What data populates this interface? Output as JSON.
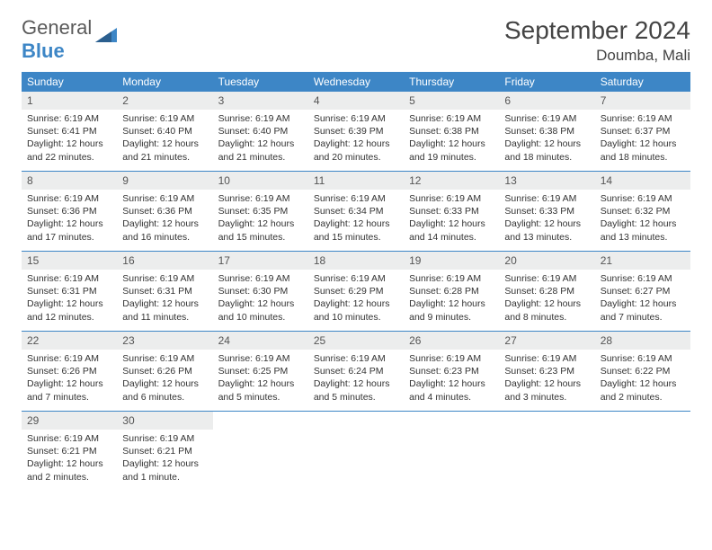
{
  "logo": {
    "text1": "General",
    "text2": "Blue"
  },
  "month": "September 2024",
  "location": "Doumba, Mali",
  "colors": {
    "header_bg": "#3d86c6",
    "daynum_bg": "#eceded",
    "week_border": "#3d86c6",
    "text": "#333333",
    "logo_gray": "#5a5a5a",
    "logo_blue": "#3d86c6"
  },
  "weekdays": [
    "Sunday",
    "Monday",
    "Tuesday",
    "Wednesday",
    "Thursday",
    "Friday",
    "Saturday"
  ],
  "weeks": [
    [
      {
        "n": "1",
        "sr": "Sunrise: 6:19 AM",
        "ss": "Sunset: 6:41 PM",
        "d1": "Daylight: 12 hours",
        "d2": "and 22 minutes."
      },
      {
        "n": "2",
        "sr": "Sunrise: 6:19 AM",
        "ss": "Sunset: 6:40 PM",
        "d1": "Daylight: 12 hours",
        "d2": "and 21 minutes."
      },
      {
        "n": "3",
        "sr": "Sunrise: 6:19 AM",
        "ss": "Sunset: 6:40 PM",
        "d1": "Daylight: 12 hours",
        "d2": "and 21 minutes."
      },
      {
        "n": "4",
        "sr": "Sunrise: 6:19 AM",
        "ss": "Sunset: 6:39 PM",
        "d1": "Daylight: 12 hours",
        "d2": "and 20 minutes."
      },
      {
        "n": "5",
        "sr": "Sunrise: 6:19 AM",
        "ss": "Sunset: 6:38 PM",
        "d1": "Daylight: 12 hours",
        "d2": "and 19 minutes."
      },
      {
        "n": "6",
        "sr": "Sunrise: 6:19 AM",
        "ss": "Sunset: 6:38 PM",
        "d1": "Daylight: 12 hours",
        "d2": "and 18 minutes."
      },
      {
        "n": "7",
        "sr": "Sunrise: 6:19 AM",
        "ss": "Sunset: 6:37 PM",
        "d1": "Daylight: 12 hours",
        "d2": "and 18 minutes."
      }
    ],
    [
      {
        "n": "8",
        "sr": "Sunrise: 6:19 AM",
        "ss": "Sunset: 6:36 PM",
        "d1": "Daylight: 12 hours",
        "d2": "and 17 minutes."
      },
      {
        "n": "9",
        "sr": "Sunrise: 6:19 AM",
        "ss": "Sunset: 6:36 PM",
        "d1": "Daylight: 12 hours",
        "d2": "and 16 minutes."
      },
      {
        "n": "10",
        "sr": "Sunrise: 6:19 AM",
        "ss": "Sunset: 6:35 PM",
        "d1": "Daylight: 12 hours",
        "d2": "and 15 minutes."
      },
      {
        "n": "11",
        "sr": "Sunrise: 6:19 AM",
        "ss": "Sunset: 6:34 PM",
        "d1": "Daylight: 12 hours",
        "d2": "and 15 minutes."
      },
      {
        "n": "12",
        "sr": "Sunrise: 6:19 AM",
        "ss": "Sunset: 6:33 PM",
        "d1": "Daylight: 12 hours",
        "d2": "and 14 minutes."
      },
      {
        "n": "13",
        "sr": "Sunrise: 6:19 AM",
        "ss": "Sunset: 6:33 PM",
        "d1": "Daylight: 12 hours",
        "d2": "and 13 minutes."
      },
      {
        "n": "14",
        "sr": "Sunrise: 6:19 AM",
        "ss": "Sunset: 6:32 PM",
        "d1": "Daylight: 12 hours",
        "d2": "and 13 minutes."
      }
    ],
    [
      {
        "n": "15",
        "sr": "Sunrise: 6:19 AM",
        "ss": "Sunset: 6:31 PM",
        "d1": "Daylight: 12 hours",
        "d2": "and 12 minutes."
      },
      {
        "n": "16",
        "sr": "Sunrise: 6:19 AM",
        "ss": "Sunset: 6:31 PM",
        "d1": "Daylight: 12 hours",
        "d2": "and 11 minutes."
      },
      {
        "n": "17",
        "sr": "Sunrise: 6:19 AM",
        "ss": "Sunset: 6:30 PM",
        "d1": "Daylight: 12 hours",
        "d2": "and 10 minutes."
      },
      {
        "n": "18",
        "sr": "Sunrise: 6:19 AM",
        "ss": "Sunset: 6:29 PM",
        "d1": "Daylight: 12 hours",
        "d2": "and 10 minutes."
      },
      {
        "n": "19",
        "sr": "Sunrise: 6:19 AM",
        "ss": "Sunset: 6:28 PM",
        "d1": "Daylight: 12 hours",
        "d2": "and 9 minutes."
      },
      {
        "n": "20",
        "sr": "Sunrise: 6:19 AM",
        "ss": "Sunset: 6:28 PM",
        "d1": "Daylight: 12 hours",
        "d2": "and 8 minutes."
      },
      {
        "n": "21",
        "sr": "Sunrise: 6:19 AM",
        "ss": "Sunset: 6:27 PM",
        "d1": "Daylight: 12 hours",
        "d2": "and 7 minutes."
      }
    ],
    [
      {
        "n": "22",
        "sr": "Sunrise: 6:19 AM",
        "ss": "Sunset: 6:26 PM",
        "d1": "Daylight: 12 hours",
        "d2": "and 7 minutes."
      },
      {
        "n": "23",
        "sr": "Sunrise: 6:19 AM",
        "ss": "Sunset: 6:26 PM",
        "d1": "Daylight: 12 hours",
        "d2": "and 6 minutes."
      },
      {
        "n": "24",
        "sr": "Sunrise: 6:19 AM",
        "ss": "Sunset: 6:25 PM",
        "d1": "Daylight: 12 hours",
        "d2": "and 5 minutes."
      },
      {
        "n": "25",
        "sr": "Sunrise: 6:19 AM",
        "ss": "Sunset: 6:24 PM",
        "d1": "Daylight: 12 hours",
        "d2": "and 5 minutes."
      },
      {
        "n": "26",
        "sr": "Sunrise: 6:19 AM",
        "ss": "Sunset: 6:23 PM",
        "d1": "Daylight: 12 hours",
        "d2": "and 4 minutes."
      },
      {
        "n": "27",
        "sr": "Sunrise: 6:19 AM",
        "ss": "Sunset: 6:23 PM",
        "d1": "Daylight: 12 hours",
        "d2": "and 3 minutes."
      },
      {
        "n": "28",
        "sr": "Sunrise: 6:19 AM",
        "ss": "Sunset: 6:22 PM",
        "d1": "Daylight: 12 hours",
        "d2": "and 2 minutes."
      }
    ],
    [
      {
        "n": "29",
        "sr": "Sunrise: 6:19 AM",
        "ss": "Sunset: 6:21 PM",
        "d1": "Daylight: 12 hours",
        "d2": "and 2 minutes."
      },
      {
        "n": "30",
        "sr": "Sunrise: 6:19 AM",
        "ss": "Sunset: 6:21 PM",
        "d1": "Daylight: 12 hours",
        "d2": "and 1 minute."
      },
      {
        "empty": true
      },
      {
        "empty": true
      },
      {
        "empty": true
      },
      {
        "empty": true
      },
      {
        "empty": true
      }
    ]
  ]
}
